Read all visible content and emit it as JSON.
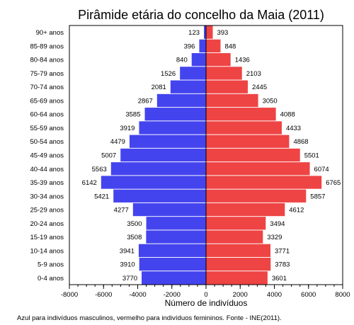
{
  "chart_data": {
    "type": "bar",
    "orientation": "horizontal",
    "title": "Pirâmide etária do concelho da Maia (2011)",
    "xlabel": "Número de indivíduos",
    "ylabel": "",
    "xlim": [
      -8000,
      8000
    ],
    "xticks": [
      -8000,
      -6000,
      -4000,
      -2000,
      0,
      2000,
      4000,
      6000,
      8000
    ],
    "xtick_labels": [
      "-8000",
      "-6000",
      "-4000",
      "-2000",
      "0",
      "2000",
      "4000",
      "6000",
      "8000"
    ],
    "grid": false,
    "categories": [
      "90+ anos",
      "85-89 anos",
      "80-84 anos",
      "75-79 anos",
      "70-74 anos",
      "65-69 anos",
      "60-64 anos",
      "55-59 anos",
      "50-54 anos",
      "45-49 anos",
      "40-44 anos",
      "35-39 anos",
      "30-34 anos",
      "25-29 anos",
      "20-24 anos",
      "15-19 anos",
      "10-14 anos",
      "5-9 anos",
      "0-4 anos"
    ],
    "series": [
      {
        "color": "#4444ee",
        "side": "left",
        "values": [
          123,
          396,
          840,
          1526,
          2081,
          2867,
          3585,
          3919,
          4479,
          5007,
          5563,
          6142,
          5421,
          4277,
          3500,
          3508,
          3941,
          3910,
          3770
        ]
      },
      {
        "color": "#ee4444",
        "side": "right",
        "values": [
          393,
          848,
          1436,
          2103,
          2445,
          3050,
          4088,
          4433,
          4868,
          5501,
          6074,
          6765,
          5857,
          4612,
          3494,
          3329,
          3771,
          3783,
          3601
        ]
      }
    ],
    "note": "Azul para indivíduos masculinos, vermelho para indivíduos femininos. Fonte - INE(2011)."
  }
}
